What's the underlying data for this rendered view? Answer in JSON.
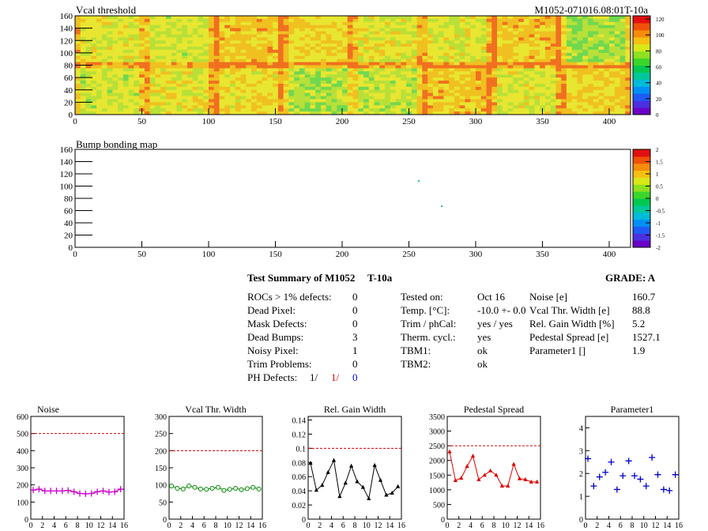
{
  "maps": {
    "threshold": {
      "title": "Vcal threshold",
      "module_id": "M1052-071016.08:01T-10a",
      "x_ticks": [
        0,
        50,
        100,
        150,
        200,
        250,
        300,
        350,
        400
      ],
      "y_ticks": [
        0,
        20,
        40,
        60,
        80,
        100,
        120,
        140,
        160
      ],
      "palette_ticks": [
        "0",
        "20",
        "40",
        "60",
        "80",
        "100",
        "120"
      ]
    },
    "bump": {
      "title": "Bump bonding map",
      "x_ticks": [
        0,
        50,
        100,
        150,
        200,
        250,
        300,
        350,
        400
      ],
      "y_ticks": [
        0,
        20,
        40,
        60,
        80,
        100,
        120,
        140,
        160
      ],
      "palette_ticks": [
        "-2",
        "-1.5",
        "-1",
        "-0.5",
        "0",
        "0.5",
        "1",
        "1.5",
        "2"
      ]
    }
  },
  "summary": {
    "title": "Test Summary of M1052",
    "tag": "T-10a",
    "grade": "GRADE:  A",
    "defects": [
      {
        "label": "ROCs > 1% defects:",
        "value": "0"
      },
      {
        "label": "Dead Pixel:",
        "value": "0"
      },
      {
        "label": "Mask Defects:",
        "value": "0"
      },
      {
        "label": "Dead Bumps:",
        "value": "3"
      },
      {
        "label": "Noisy Pixel:",
        "value": "1"
      },
      {
        "label": "Trim Problems:",
        "value": "0"
      }
    ],
    "ph_defects": {
      "label": "PH Defects:",
      "v1": "1/",
      "v2": "1/",
      "v3": "0"
    },
    "conditions": [
      {
        "label": "Tested on:",
        "value": "Oct 16"
      },
      {
        "label": "Temp. [°C]:",
        "value": "-10.0 +- 0.0"
      },
      {
        "label": "Trim / phCal:",
        "value": "yes / yes"
      },
      {
        "label": "Therm. cycl.:",
        "value": "yes"
      },
      {
        "label": "TBM1:",
        "value": "ok"
      },
      {
        "label": "TBM2:",
        "value": "ok"
      }
    ],
    "results": [
      {
        "label": "Noise [e]",
        "value": "160.7"
      },
      {
        "label": "Vcal Thr. Width [e]",
        "value": "88.8"
      },
      {
        "label": "Rel. Gain Width [%]",
        "value": "5.2"
      },
      {
        "label": "Pedestal Spread [e]",
        "value": "1527.1"
      },
      {
        "label": "Parameter1 []",
        "value": "1.9"
      }
    ]
  },
  "chart_data": [
    {
      "type": "scatter",
      "title": "Noise",
      "x": [
        0,
        1,
        2,
        3,
        4,
        5,
        6,
        7,
        8,
        9,
        10,
        11,
        12,
        13,
        14,
        15
      ],
      "values": [
        170,
        175,
        165,
        165,
        165,
        165,
        168,
        160,
        150,
        148,
        150,
        160,
        165,
        158,
        160,
        175
      ],
      "ylim": [
        0,
        600
      ],
      "yticks": [
        0,
        100,
        200,
        300,
        400,
        500,
        600
      ],
      "cut": 500,
      "color": "#cc00cc",
      "marker": "cross"
    },
    {
      "type": "scatter",
      "title": "Vcal Thr. Width",
      "x": [
        0,
        1,
        2,
        3,
        4,
        5,
        6,
        7,
        8,
        9,
        10,
        11,
        12,
        13,
        14,
        15
      ],
      "values": [
        97,
        90,
        88,
        97,
        93,
        88,
        87,
        90,
        93,
        84,
        87,
        90,
        86,
        89,
        93,
        88
      ],
      "ylim": [
        0,
        300
      ],
      "yticks": [
        0,
        50,
        100,
        150,
        200,
        250,
        300
      ],
      "cut": 200,
      "color": "#008800",
      "marker": "circle"
    },
    {
      "type": "line",
      "title": "Rel. Gain Width",
      "x": [
        0,
        1,
        2,
        3,
        4,
        5,
        6,
        7,
        8,
        9,
        10,
        11,
        12,
        13,
        14,
        15
      ],
      "values": [
        0.079,
        0.041,
        0.048,
        0.066,
        0.083,
        0.032,
        0.051,
        0.075,
        0.053,
        0.045,
        0.029,
        0.076,
        0.055,
        0.034,
        0.037,
        0.046
      ],
      "ylim": [
        0,
        0.145
      ],
      "yticks": [
        0,
        0.02,
        0.04,
        0.06,
        0.08,
        0.1,
        0.12,
        0.14
      ],
      "cut": 0.1,
      "color": "#000000",
      "marker": "triangle"
    },
    {
      "type": "line",
      "title": "Pedestal Spread",
      "x": [
        0,
        1,
        2,
        3,
        4,
        5,
        6,
        7,
        8,
        9,
        10,
        11,
        12,
        13,
        14,
        15
      ],
      "values": [
        2300,
        1320,
        1400,
        1800,
        2150,
        1350,
        1500,
        1650,
        1500,
        1130,
        1130,
        1870,
        1380,
        1350,
        1270,
        1270
      ],
      "ylim": [
        0,
        3500
      ],
      "yticks": [
        0,
        500,
        1000,
        1500,
        2000,
        2500,
        3000,
        3500
      ],
      "cut": 2500,
      "color": "#dd0000",
      "marker": "triangle"
    },
    {
      "type": "scatter",
      "title": "Parameter1",
      "x": [
        0,
        1,
        2,
        3,
        4,
        5,
        6,
        7,
        8,
        9,
        10,
        11,
        12,
        13,
        14,
        15
      ],
      "values": [
        2.65,
        1.45,
        1.85,
        2.05,
        2.5,
        1.3,
        1.9,
        2.55,
        1.9,
        1.75,
        1.45,
        2.7,
        1.95,
        1.3,
        1.25,
        1.95
      ],
      "ylim": [
        0,
        4.5
      ],
      "yticks": [
        0,
        1,
        2,
        3,
        4
      ],
      "cut": null,
      "color": "#0000cc",
      "marker": "cross"
    }
  ]
}
